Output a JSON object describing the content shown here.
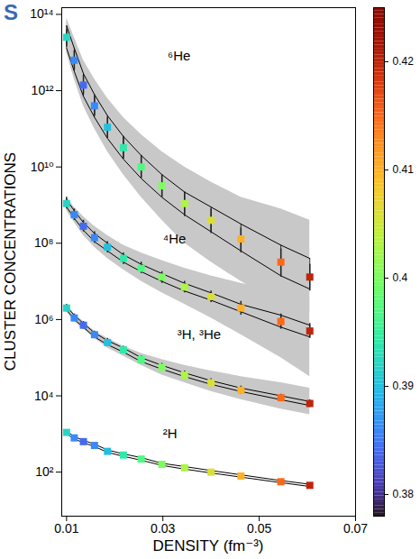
{
  "chart_data": {
    "type": "scatter",
    "title": "S",
    "x_label": "DENSITY (fm⁻³)",
    "y_label": "CLUSTER CONCENTRATIONS",
    "log": "y",
    "grid": false,
    "marker": "square",
    "xlim": [
      0.009,
      0.07
    ],
    "xticks": [
      0.01,
      0.03,
      0.05,
      0.07
    ],
    "ylim": [
      7,
      150000000000000.0
    ],
    "yticks": [
      {
        "value": 100,
        "label": "10²"
      },
      {
        "value": 10000,
        "label": "10⁴"
      },
      {
        "value": 1000000,
        "label": "10⁶"
      },
      {
        "value": 100000000,
        "label": "10⁸"
      },
      {
        "value": 10000000000,
        "label": "10¹⁰"
      },
      {
        "value": 1000000000000,
        "label": "10¹²"
      },
      {
        "value": 100000000000000,
        "label": "10¹⁴"
      }
    ],
    "x": [
      0.01,
      0.0116,
      0.0135,
      0.0158,
      0.0185,
      0.0218,
      0.0255,
      0.0298,
      0.0345,
      0.04,
      0.0462,
      0.0545,
      0.0605
    ],
    "color_values": [
      0.392,
      0.386,
      0.384,
      0.386,
      0.39,
      0.394,
      0.397,
      0.4,
      0.403,
      0.406,
      0.41,
      0.415,
      0.42
    ],
    "colorbar_lim": [
      0.378,
      0.425
    ],
    "colorbar_ticks": [
      0.38,
      0.39,
      0.4,
      0.41,
      0.42
    ],
    "series": [
      {
        "name": "⁶He",
        "label_x": 0.031,
        "label_y": 8000000000000.0,
        "values": [
          25000000000000.0,
          6300000000000.0,
          1400000000000.0,
          400000000000.0,
          110000000000.0,
          32000000000.0,
          10000000000.0,
          3200000000.0,
          1100000000.0,
          400000000.0,
          130000000.0,
          32000000.0,
          13000000.0
        ],
        "error_low": [
          14000000000000.0,
          3500000000000.0,
          790000000000.0,
          220000000000.0,
          56000000000.0,
          16000000000.0,
          5000000000.0,
          1600000000.0,
          500000000.0,
          180000000.0,
          56000000.0,
          13000000.0,
          5600000.0
        ],
        "error_high": [
          40000000000000.0,
          11000000000000.0,
          2500000000000.0,
          710000000000.0,
          200000000000.0,
          63000000000.0,
          20000000000.0,
          6300000000.0,
          2200000000.0,
          790000000.0,
          250000000.0,
          71000000.0,
          28000000.0
        ],
        "band_low": [
          13000000000000.0,
          3200000000000.0,
          710000000000.0,
          200000000000.0,
          56000000000.0,
          16000000000.0,
          5000000000.0,
          1600000000.0,
          560000000.0,
          200000000.0,
          63000000.0,
          14000000.0,
          6300000.0
        ],
        "band_high": [
          50000000000000.0,
          13000000000000.0,
          2800000000000.0,
          790000000000.0,
          220000000000.0,
          63000000000.0,
          20000000000.0,
          6300000000.0,
          2200000000.0,
          890000000.0,
          320000000.0,
          89000000.0,
          40000000.0
        ],
        "range_low": [
          10000000000000.0,
          2000000000000.0,
          400000000000.0,
          100000000000.0,
          25000000000.0,
          6300000000.0,
          1600000000.0,
          400000000.0,
          100000000.0,
          32000000.0,
          10000000.0,
          2500000.0,
          1600000.0
        ],
        "range_high": [
          80000000000000.0,
          25000000000000.0,
          6300000000000.0,
          2000000000000.0,
          630000000000.0,
          200000000000.0,
          71000000000.0,
          25000000000.0,
          10000000000.0,
          4000000000.0,
          1600000000.0,
          790000000.0,
          400000000.0
        ]
      },
      {
        "name": "⁴He",
        "label_x": 0.03,
        "label_y": 130000000.0,
        "values": [
          1100000000.0,
          560000000.0,
          280000000.0,
          140000000.0,
          79000000.0,
          40000000.0,
          22000000.0,
          13000000.0,
          7100000.0,
          4000000.0,
          2000000.0,
          890000.0,
          500000.0
        ],
        "error_low": [
          790000000.0,
          400000000.0,
          200000000.0,
          100000000.0,
          56000000.0,
          28000000.0,
          16000000.0,
          8900000.0,
          5000000.0,
          2800000.0,
          1300000.0,
          560000.0,
          320000.0
        ],
        "error_high": [
          1600000000.0,
          790000000.0,
          400000000.0,
          200000000.0,
          110000000.0,
          56000000.0,
          32000000.0,
          18000000.0,
          10000000.0,
          5600000.0,
          3000000.0,
          1400000.0,
          790000.0
        ],
        "band_low": [
          900000000.0,
          450000000.0,
          220000000.0,
          110000000.0,
          63000000.0,
          32000000.0,
          18000000.0,
          10000000.0,
          5600000.0,
          3200000.0,
          1600000.0,
          630000.0,
          350000.0
        ],
        "band_high": [
          1400000000.0,
          710000000.0,
          350000000.0,
          180000000.0,
          100000000.0,
          50000000.0,
          28000000.0,
          16000000.0,
          8900000.0,
          5000000.0,
          2500000.0,
          1300000.0,
          710000.0
        ],
        "range_low": [
          710000000.0,
          350000000.0,
          160000000.0,
          79000000.0,
          40000000.0,
          20000000.0,
          10000000.0,
          5000000.0,
          2500000.0,
          1100000.0,
          400000.0,
          100000.0,
          32000.0
        ],
        "range_high": [
          1600000000.0,
          890000000.0,
          500000000.0,
          280000000.0,
          160000000.0,
          89000000.0,
          56000000.0,
          35000000.0,
          22000000.0,
          14000000.0,
          8900000.0,
          5600000.0,
          4000000.0
        ]
      },
      {
        "name": "³H, ³He",
        "label_x": 0.033,
        "label_y": 400000.0,
        "values": [
          2000000.0,
          1100000.0,
          710000.0,
          400000.0,
          250000.0,
          160000.0,
          89000.0,
          56000.0,
          35000.0,
          22000.0,
          14000.0,
          8900.0,
          6300.0
        ],
        "error_low": [
          1600000.0,
          890000.0,
          560000.0,
          320000.0,
          200000.0,
          130000.0,
          71000.0,
          45000.0,
          28000.0,
          18000.0,
          11000.0,
          7100.0,
          5000.0
        ],
        "error_high": [
          2500000.0,
          1400000.0,
          890000.0,
          500000.0,
          320000.0,
          200000.0,
          110000.0,
          71000.0,
          45000.0,
          28000.0,
          18000.0,
          11000.0,
          7900.0
        ],
        "band_low": [
          1800000.0,
          1000000.0,
          630000.0,
          350000.0,
          220000.0,
          140000.0,
          79000.0,
          50000.0,
          32000.0,
          20000.0,
          13000.0,
          7900.0,
          5600.0
        ],
        "band_high": [
          2200000.0,
          1300000.0,
          790000.0,
          450000.0,
          280000.0,
          180000.0,
          100000.0,
          63000.0,
          40000.0,
          25000.0,
          16000.0,
          10000.0,
          7100.0
        ],
        "range_low": [
          1600000.0,
          890000.0,
          560000.0,
          320000.0,
          180000.0,
          110000.0,
          63000.0,
          35000.0,
          22000.0,
          13000.0,
          7900.0,
          4500.0,
          3200.0
        ],
        "range_high": [
          2500000.0,
          1400000.0,
          890000.0,
          500000.0,
          320000.0,
          200000.0,
          130000.0,
          89000.0,
          63000.0,
          45000.0,
          32000.0,
          22000.0,
          16000.0
        ]
      },
      {
        "name": "²H",
        "label_x": 0.03,
        "label_y": 1000,
        "values": [
          1100,
          790,
          630,
          500,
          350,
          280,
          220,
          160,
          130,
          100,
          79,
          56,
          45
        ],
        "error_low": [
          1000,
          710,
          560,
          450,
          320,
          250,
          200,
          140,
          110,
          89,
          71,
          50,
          40
        ],
        "error_high": [
          1250,
          890,
          710,
          560,
          400,
          320,
          250,
          180,
          140,
          110,
          89,
          63,
          50
        ],
        "band_low": [
          1000,
          740,
          590,
          470,
          330,
          260,
          205,
          150,
          120,
          95,
          74,
          53,
          42
        ],
        "band_high": [
          1200,
          850,
          680,
          540,
          380,
          300,
          240,
          170,
          140,
          110,
          85,
          60,
          48
        ]
      }
    ]
  }
}
